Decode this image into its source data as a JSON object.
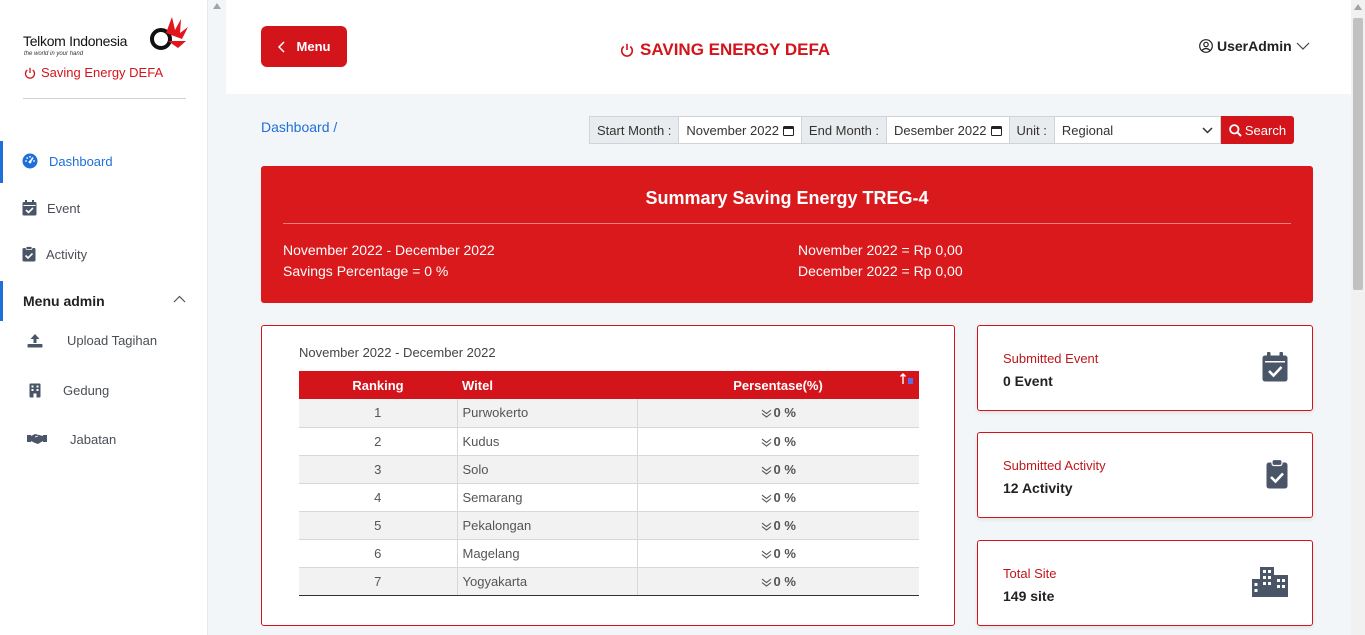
{
  "brand": {
    "company": "Telkom Indonesia",
    "tagline": "the world in your hand",
    "app_name": "Saving Energy DEFA"
  },
  "sidebar": {
    "items": [
      {
        "label": "Dashboard",
        "icon": "dashboard-gauge-icon"
      },
      {
        "label": "Event",
        "icon": "calendar-check-icon"
      },
      {
        "label": "Activity",
        "icon": "clipboard-check-icon"
      }
    ],
    "section_label": "Menu admin",
    "admin_items": [
      {
        "label": "Upload Tagihan",
        "icon": "upload-icon"
      },
      {
        "label": "Gedung",
        "icon": "building-icon"
      },
      {
        "label": "Jabatan",
        "icon": "handshake-icon"
      }
    ]
  },
  "topbar": {
    "menu_label": "Menu",
    "title": "SAVING ENERGY DEFA",
    "user": "UserAdmin"
  },
  "breadcrumb": "Dashboard /",
  "filters": {
    "start_label": "Start Month :",
    "start_value": "November 2022",
    "end_label": "End Month :",
    "end_value": "Desember 2022",
    "unit_label": "Unit :",
    "unit_value": "Regional",
    "search_label": "Search"
  },
  "summary": {
    "title": "Summary Saving Energy TREG-4",
    "period": "November 2022 - December 2022",
    "savings": "Savings Percentage = 0 %",
    "month1": "November 2022 = Rp 0,00",
    "month2": "December 2022 = Rp 0,00"
  },
  "ranking": {
    "period": "November 2022 - December 2022",
    "headers": [
      "Ranking",
      "Witel",
      "Persentase(%)"
    ],
    "rows": [
      {
        "rank": "1",
        "witel": "Purwokerto",
        "pct": "0 %"
      },
      {
        "rank": "2",
        "witel": "Kudus",
        "pct": "0 %"
      },
      {
        "rank": "3",
        "witel": "Solo",
        "pct": "0 %"
      },
      {
        "rank": "4",
        "witel": "Semarang",
        "pct": "0 %"
      },
      {
        "rank": "5",
        "witel": "Pekalongan",
        "pct": "0 %"
      },
      {
        "rank": "6",
        "witel": "Magelang",
        "pct": "0 %"
      },
      {
        "rank": "7",
        "witel": "Yogyakarta",
        "pct": "0 %"
      }
    ]
  },
  "stats": [
    {
      "label": "Submitted Event",
      "value": "0 Event",
      "icon": "calendar-check-icon"
    },
    {
      "label": "Submitted Activity",
      "value": "12 Activity",
      "icon": "clipboard-check-icon"
    },
    {
      "label": "Total Site",
      "value": "149 site",
      "icon": "city-buildings-icon"
    }
  ],
  "colors": {
    "brand_red": "#d3141b",
    "link_blue": "#1e6fd9",
    "icon_gray": "#4a5568"
  }
}
